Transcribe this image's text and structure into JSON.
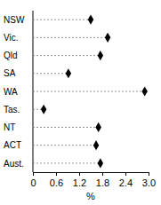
{
  "chart_data": {
    "type": "dot",
    "orientation": "horizontal",
    "categories": [
      "NSW",
      "Vic.",
      "Qld",
      "SA",
      "WA",
      "Tas.",
      "NT",
      "ACT",
      "Aust."
    ],
    "values": [
      1.5,
      1.94,
      1.75,
      0.92,
      2.9,
      0.28,
      1.7,
      1.64,
      1.75
    ],
    "color": "#000000",
    "marker": "diamond",
    "line_style": "dashed",
    "x_label": "%",
    "xlim": [
      0,
      3
    ],
    "xticks": [
      0,
      0.6,
      1.2,
      1.8,
      2.4,
      {
        "value": 3,
        "label": "3.0"
      }
    ]
  }
}
